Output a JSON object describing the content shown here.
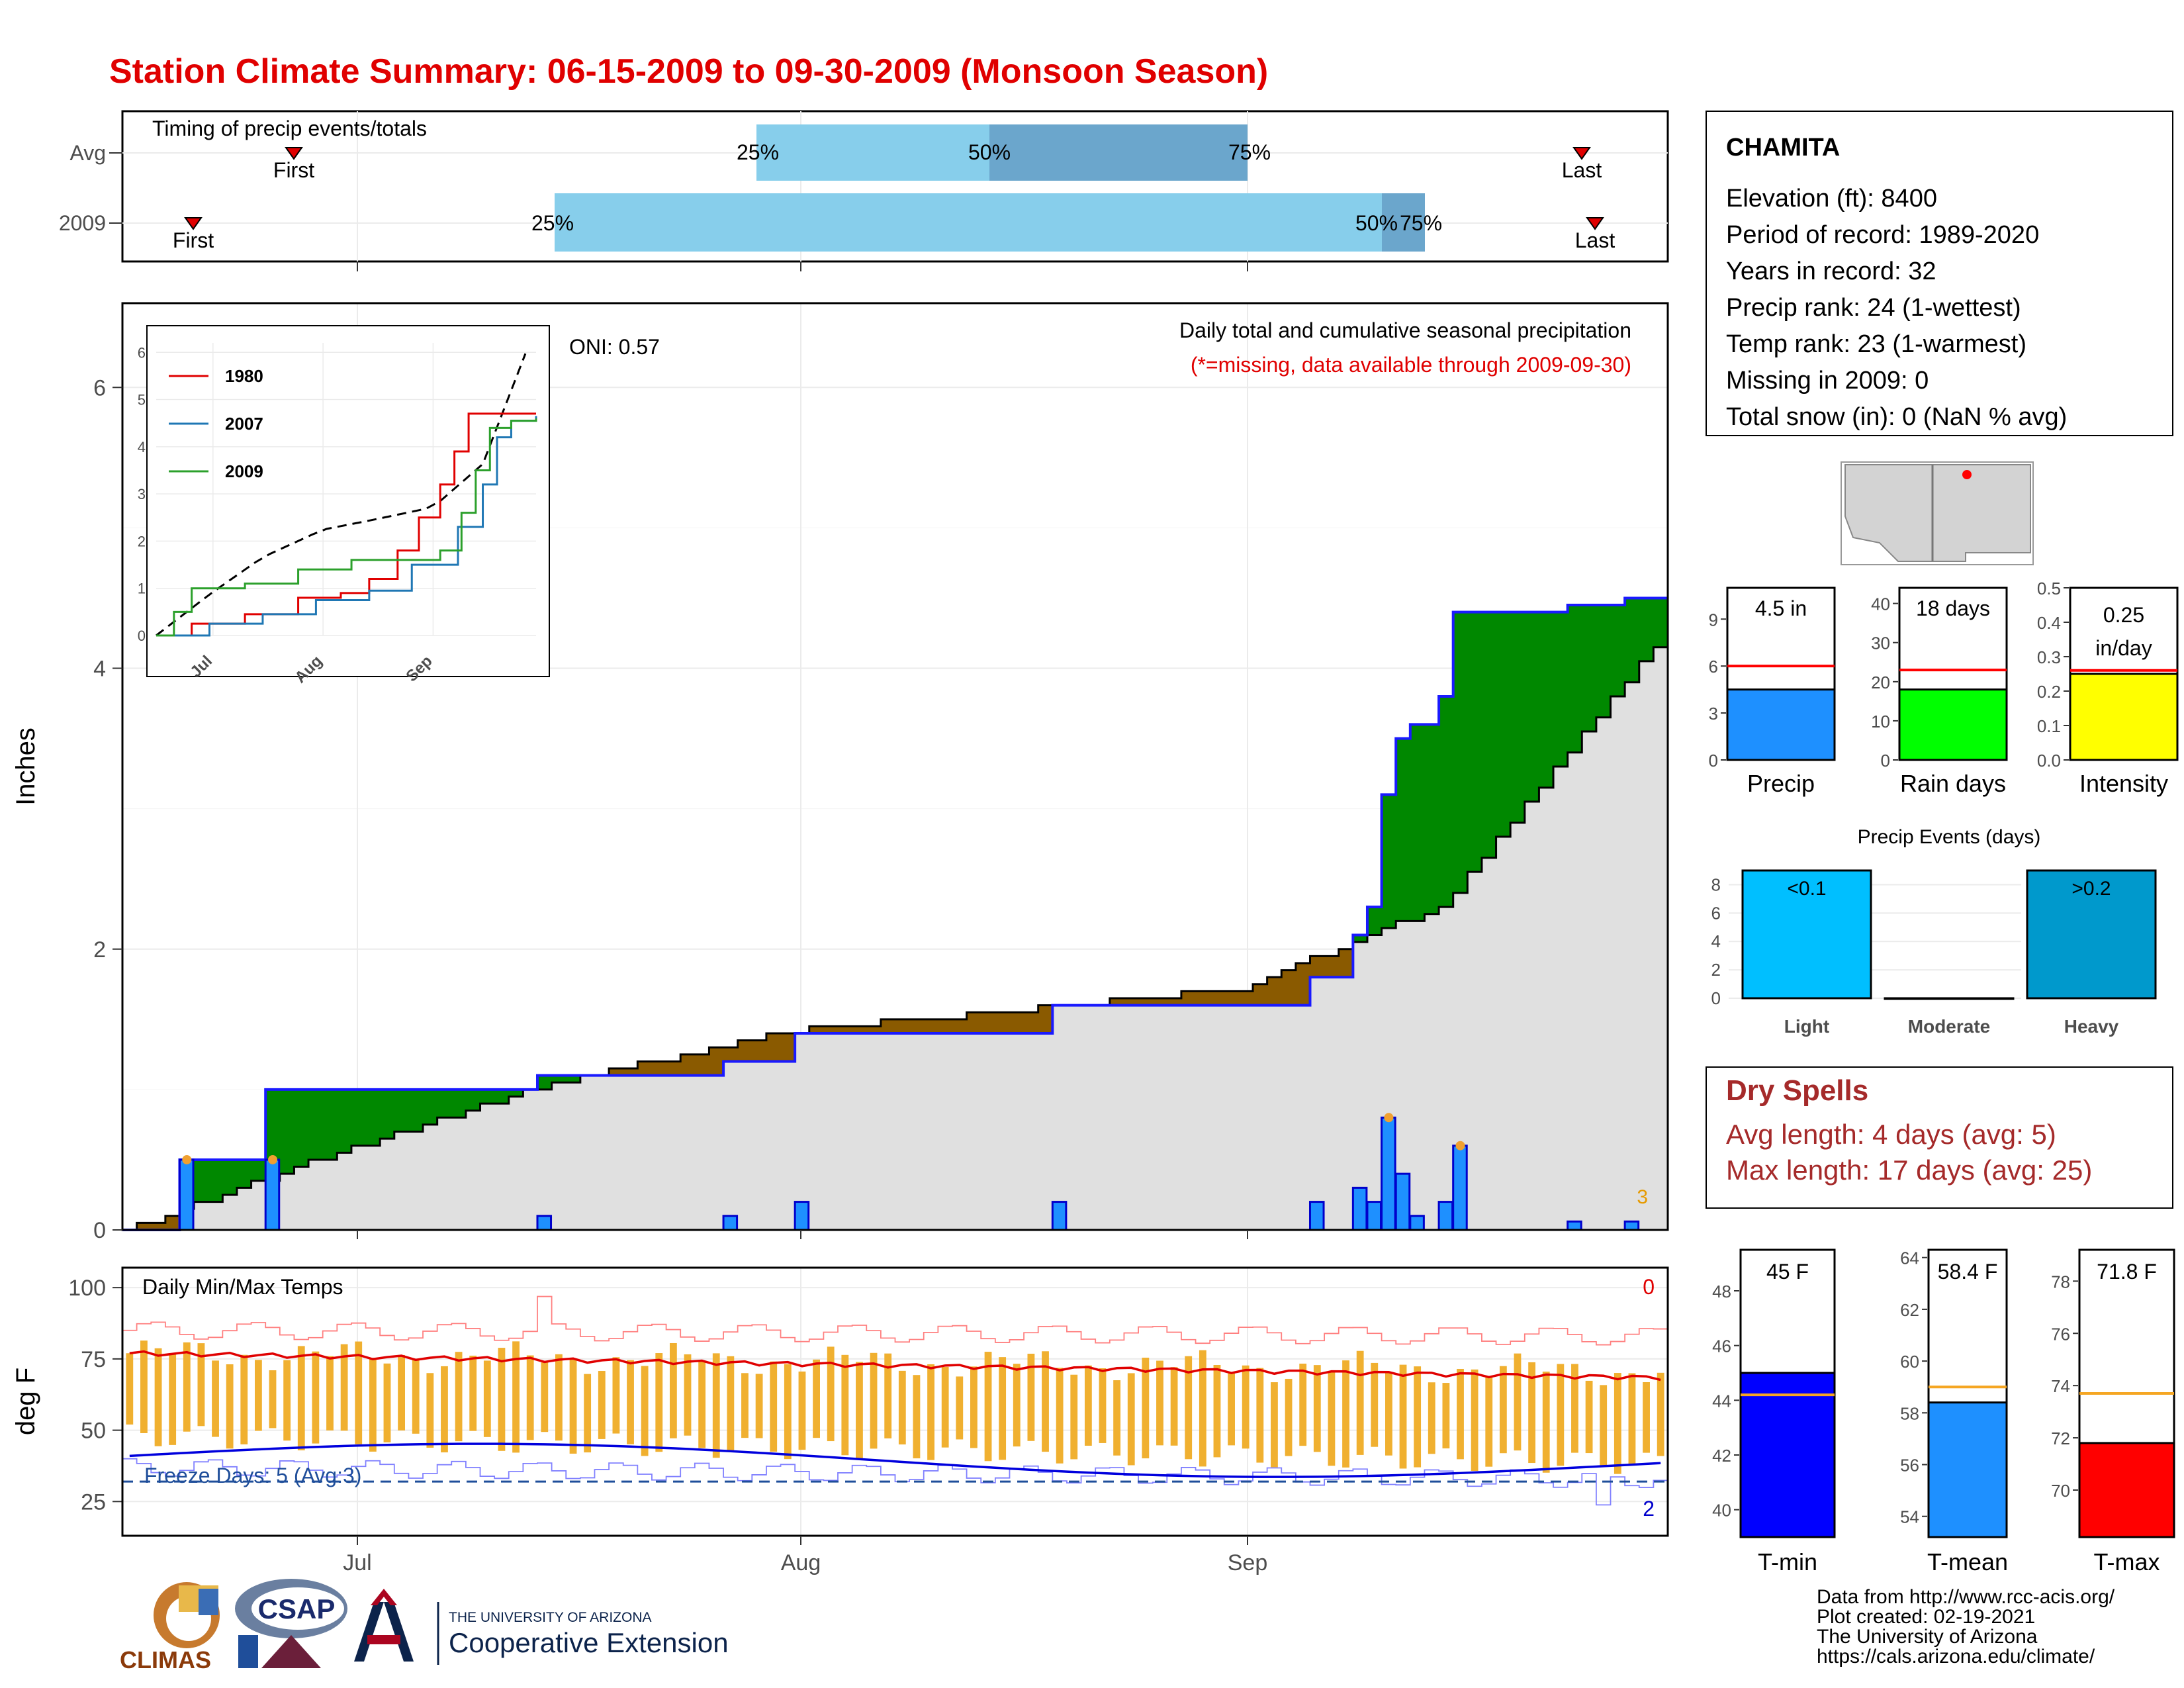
{
  "title": "Station Climate Summary: 06-15-2009 to 09-30-2009 (Monsoon Season)",
  "colors": {
    "title": "#e00000",
    "cum_precip": "#8a5a00",
    "avg_fill": "#e0e0e0",
    "green": "#008800",
    "bar_blue": "#1e90ff",
    "timing_light": "#87ceeb",
    "timing_dark": "#6ba6cc",
    "temp_bar": "#f0b030",
    "dry_spell": "#a52a2a"
  },
  "timing": {
    "title": "Timing of precip events/totals",
    "rows": [
      {
        "label": "Avg",
        "first": "First",
        "last": "Last",
        "p25": "25%",
        "p50": "50%",
        "p75": "75%"
      },
      {
        "label": "2009",
        "first": "First",
        "last": "Last",
        "p25": "25%",
        "p50": "50%",
        "p75": "75%"
      }
    ]
  },
  "x_axis": {
    "ticks": [
      "Jul",
      "Aug",
      "Sep"
    ]
  },
  "precip": {
    "ylabel": "Inches",
    "yticks": [
      "0",
      "2",
      "4",
      "6"
    ],
    "oni": "ONI: 0.57",
    "note": "Daily total and cumulative seasonal precipitation",
    "missing_note": "(*=missing, data available through 2009-09-30)",
    "corner": "3"
  },
  "inset": {
    "yticks": [
      "0",
      "1",
      "2",
      "3",
      "4",
      "5",
      "6"
    ],
    "xticks": [
      "Jul",
      "Aug",
      "Sep"
    ],
    "legend": [
      {
        "label": "1980",
        "color": "#e00000"
      },
      {
        "label": "2007",
        "color": "#1f77b4"
      },
      {
        "label": "2009",
        "color": "#2ca02c"
      }
    ]
  },
  "temp": {
    "title": "Daily Min/Max Temps",
    "ylabel": "deg F",
    "yticks": [
      "25",
      "50",
      "75",
      "100"
    ],
    "freeze": "Freeze Days: 5 (Avg:3)",
    "top_count": "0",
    "bottom_count": "2"
  },
  "station": {
    "name": "CHAMITA",
    "lines": [
      "Elevation (ft): 8400",
      "Period of record: 1989-2020",
      "Years in record: 32",
      "Precip rank: 24 (1-wettest)",
      "Temp rank: 23 (1-warmest)",
      "Missing in 2009: 0",
      "Total snow (in): 0 (NaN % avg)"
    ]
  },
  "mini_bars": [
    {
      "label": "Precip",
      "value_text": "4.5 in",
      "value": 4.5,
      "avg": 6,
      "ymax": 11,
      "ticks": [
        "0",
        "3",
        "6",
        "9"
      ],
      "color": "#1e90ff"
    },
    {
      "label": "Rain days",
      "value_text": "18 days",
      "value": 18,
      "avg": 23,
      "ymax": 44,
      "ticks": [
        "0",
        "10",
        "20",
        "30",
        "40"
      ],
      "color": "#00ff00"
    },
    {
      "label": "Intensity",
      "value_text": "0.25 in/day",
      "value": 0.25,
      "avg": 0.26,
      "ymax": 0.5,
      "ticks": [
        "0.0",
        "0.1",
        "0.2",
        "0.3",
        "0.4",
        "0.5"
      ],
      "color": "#ffff00"
    }
  ],
  "events": {
    "title": "Precip Events (days)",
    "yticks": [
      "0",
      "2",
      "4",
      "6",
      "8"
    ],
    "bars": [
      {
        "label": "Light",
        "value": 9,
        "text": "<0.1",
        "color": "#00bfff"
      },
      {
        "label": "Moderate",
        "value": 0,
        "text": "",
        "color": "#1e90ff"
      },
      {
        "label": "Heavy",
        "value": 9,
        "text": ">0.2",
        "color": "#0099cc"
      }
    ]
  },
  "dry": {
    "title": "Dry Spells",
    "avg_line": "Avg length: 4 days (avg: 5)",
    "max_line": "Max length: 17 days (avg: 25)"
  },
  "temp_bars": [
    {
      "label": "T-min",
      "value_text": "45 F",
      "value": 45,
      "avg": 44.2,
      "ymin": 39,
      "ymax": 49.5,
      "ticks": [
        "40",
        "42",
        "44",
        "46",
        "48"
      ],
      "color": "#0000ff"
    },
    {
      "label": "T-mean",
      "value_text": "58.4 F",
      "value": 58.4,
      "avg": 59,
      "ymin": 53.2,
      "ymax": 64.3,
      "ticks": [
        "54",
        "56",
        "58",
        "60",
        "62",
        "64"
      ],
      "color": "#1e90ff"
    },
    {
      "label": "T-max",
      "value_text": "71.8 F",
      "value": 71.8,
      "avg": 73.7,
      "ymin": 68.2,
      "ymax": 79.2,
      "ticks": [
        "70",
        "72",
        "74",
        "76",
        "78"
      ],
      "color": "#ff0000"
    }
  ],
  "logos": {
    "climas": "CLIMAS",
    "csap": "CSAP",
    "ua_small": "THE UNIVERSITY OF ARIZONA",
    "ua_big": "Cooperative Extension"
  },
  "credits": [
    "Data from http://www.rcc-acis.org/",
    "Plot created: 02-19-2021",
    "The University of Arizona",
    "https://cals.arizona.edu/climate/"
  ],
  "chart_data": {
    "type": "area",
    "title": "Station Climate Summary: 06-15-2009 to 09-30-2009 (Monsoon Season)",
    "ylabel": "Inches",
    "ylim": [
      0,
      6.6
    ],
    "x_start": "2009-06-15",
    "x_end": "2009-09-30",
    "series": [
      {
        "name": "avg_cumulative",
        "x": [
          "2009-06-15",
          "2009-06-30",
          "2009-07-15",
          "2009-08-01",
          "2009-08-15",
          "2009-09-01",
          "2009-09-15",
          "2009-09-30"
        ],
        "values": [
          0,
          0.55,
          1.05,
          1.42,
          1.55,
          1.72,
          2.3,
          4.15
        ]
      },
      {
        "name": "2009_cumulative",
        "x": [
          "2009-06-15",
          "2009-06-18",
          "2009-06-19",
          "2009-06-24",
          "2009-06-25",
          "2009-07-07",
          "2009-07-14",
          "2009-07-27",
          "2009-08-01",
          "2009-08-19",
          "2009-09-01",
          "2009-09-06",
          "2009-09-09",
          "2009-09-10",
          "2009-09-11",
          "2009-09-12",
          "2009-09-13",
          "2009-09-15",
          "2009-09-16",
          "2009-09-23",
          "2009-09-24",
          "2009-09-28"
        ],
        "values": [
          0,
          0,
          0.5,
          0.5,
          1.0,
          1.0,
          1.1,
          1.2,
          1.4,
          1.6,
          1.6,
          1.8,
          2.1,
          2.3,
          3.1,
          3.5,
          3.6,
          3.8,
          4.4,
          4.4,
          4.45,
          4.5
        ]
      }
    ]
  }
}
